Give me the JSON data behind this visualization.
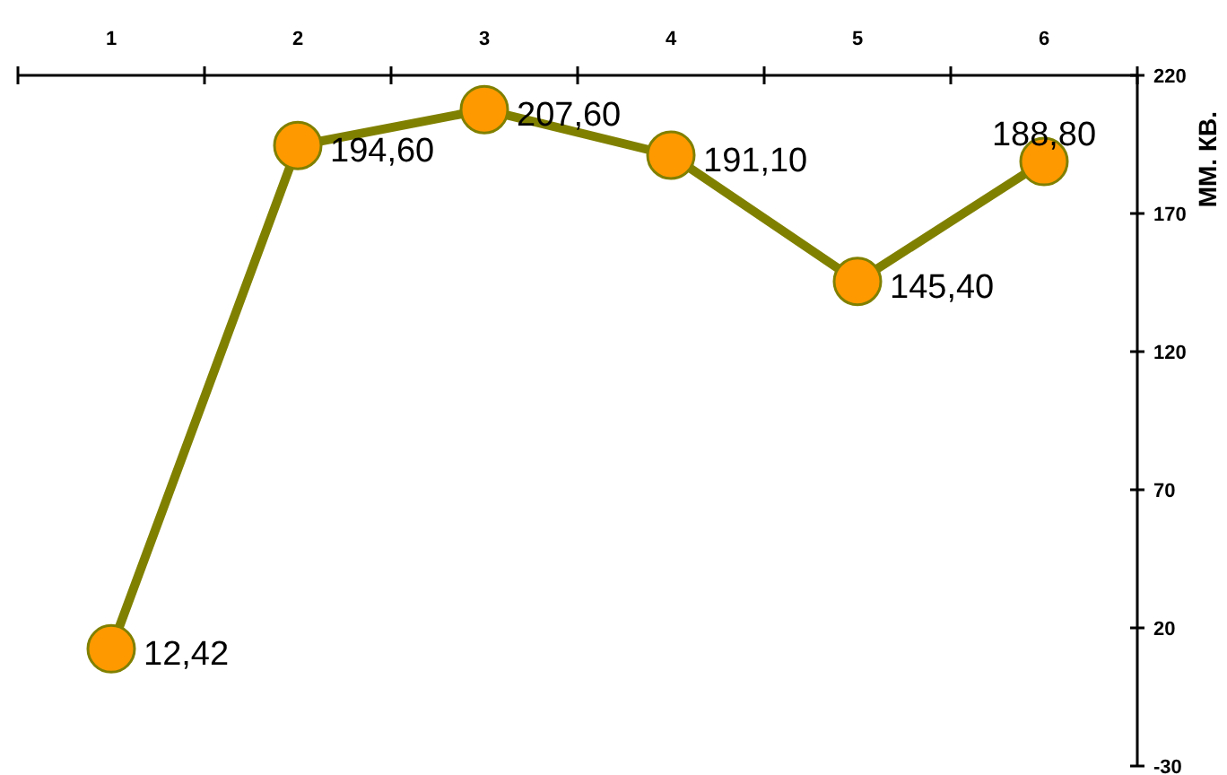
{
  "chart_data": {
    "type": "line",
    "categories": [
      "1",
      "2",
      "3",
      "4",
      "5",
      "6"
    ],
    "series": [
      {
        "color": "#808000",
        "values": [
          12.42,
          194.6,
          207.6,
          191.1,
          145.4,
          188.8
        ],
        "value_labels": [
          "12,42",
          "194,60",
          "207,60",
          "191,10",
          "145,40",
          "188,80"
        ]
      }
    ],
    "ylabel": "ММ. КВ.",
    "ylim": [
      -30,
      220
    ],
    "yticks": [
      -30,
      20,
      70,
      120,
      170,
      220
    ],
    "marker": "circle",
    "line_style": "solid",
    "grid": false
  }
}
